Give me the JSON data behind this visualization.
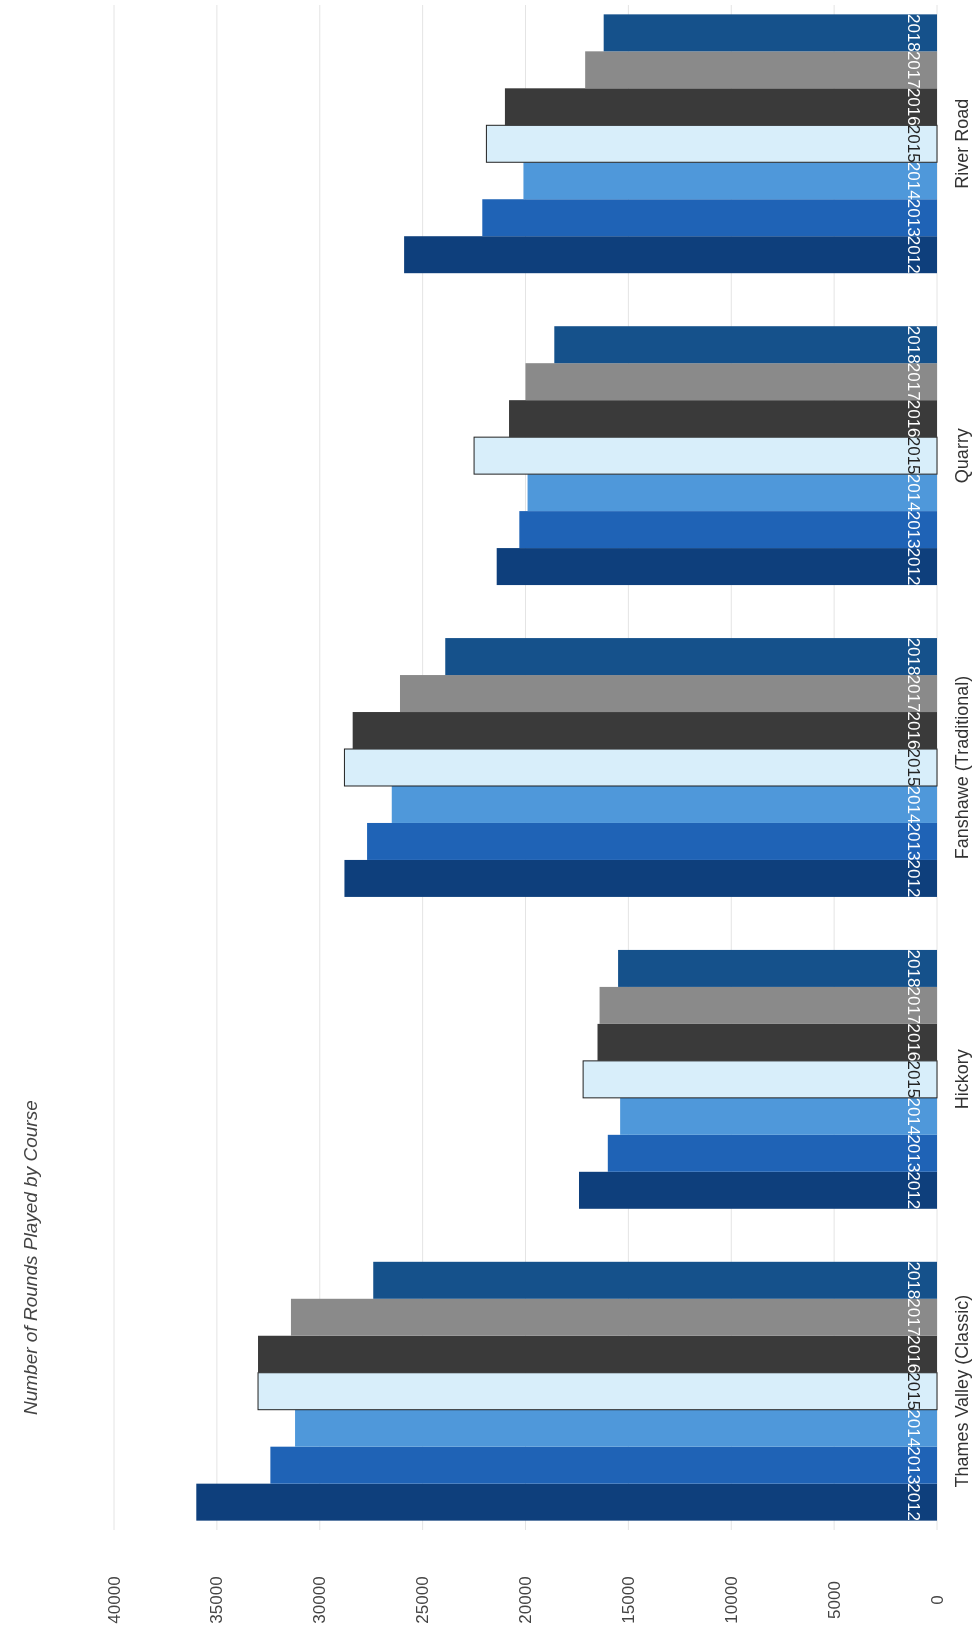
{
  "chart_data": {
    "type": "bar",
    "orientation": "horizontal",
    "title": "Number of Rounds Played by Course",
    "categories": [
      "River Road",
      "Quarry",
      "Fanshawe (Traditional)",
      "Hickory",
      "Thames Valley (Classic)"
    ],
    "series": [
      {
        "name": "2012",
        "color": "#0e3f7c",
        "values": [
          25900,
          21400,
          28800,
          17400,
          36000
        ]
      },
      {
        "name": "2013",
        "color": "#1f63b6",
        "values": [
          22100,
          20300,
          27700,
          16000,
          32400
        ]
      },
      {
        "name": "2014",
        "color": "#4f98da",
        "values": [
          20100,
          19900,
          26500,
          15400,
          31200
        ]
      },
      {
        "name": "2015",
        "color": "#d8eefa",
        "values": [
          21900,
          22500,
          28800,
          17200,
          33000
        ]
      },
      {
        "name": "2016",
        "color": "#3a3a3a",
        "values": [
          21000,
          20800,
          28400,
          16500,
          33000
        ]
      },
      {
        "name": "2017",
        "color": "#8a8a8a",
        "values": [
          17100,
          20000,
          26100,
          16400,
          31400
        ]
      },
      {
        "name": "2018",
        "color": "#15518b",
        "values": [
          16200,
          18600,
          23900,
          15500,
          27400
        ]
      }
    ],
    "xlim": [
      40000,
      0
    ],
    "xticks": [
      0,
      5000,
      10000,
      15000,
      20000,
      25000,
      30000,
      35000,
      40000
    ],
    "grid": "x"
  }
}
